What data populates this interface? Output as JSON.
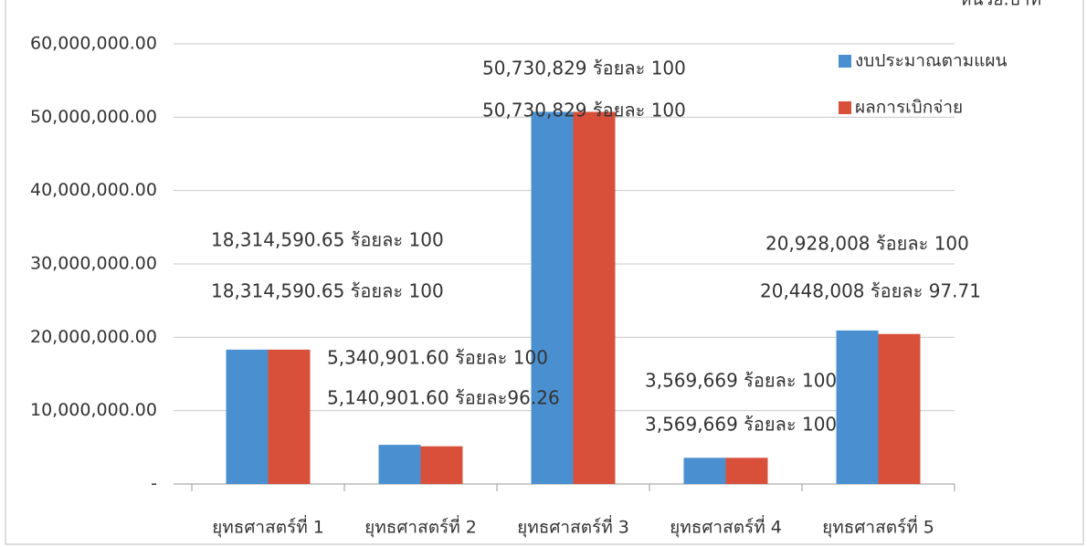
{
  "chart_data": {
    "type": "bar",
    "unit": "หน่วย:บาท",
    "categories": [
      "ยุทธศาสตร์ที่ 1",
      "ยุทธศาสตร์ที่ 2",
      "ยุทธศาสตร์ที่ 3",
      "ยุทธศาสตร์ที่ 4",
      "ยุทธศาสตร์ที่ 5"
    ],
    "series": [
      {
        "name": "งบประมาณตามแผน",
        "color": "#4a90d0",
        "values": [
          18314590.65,
          5340901.6,
          50730829,
          3569669,
          20928008
        ],
        "value_labels": [
          "18,314,590.65 ร้อยละ 100",
          "5,340,901.60 ร้อยละ 100",
          "50,730,829 ร้อยละ 100",
          "3,569,669 ร้อยละ 100",
          "20,928,008 ร้อยละ 100"
        ]
      },
      {
        "name": "ผลการเบิกจ่าย",
        "color": "#d9503a",
        "values": [
          18314590.65,
          5140901.6,
          50730829,
          3569669,
          20448008
        ],
        "value_labels": [
          "18,314,590.65 ร้อยละ 100",
          "5,140,901.60 ร้อยละ96.26",
          "50,730,829 ร้อยละ 100",
          "3,569,669 ร้อยละ 100",
          "20,448,008 ร้อยละ 97.71"
        ]
      }
    ],
    "ylim": [
      0,
      60000000
    ],
    "yticks": [
      {
        "value": 0,
        "label": "-"
      },
      {
        "value": 10000000,
        "label": "10,000,000.00"
      },
      {
        "value": 20000000,
        "label": "20,000,000.00"
      },
      {
        "value": 30000000,
        "label": "30,000,000.00"
      },
      {
        "value": 40000000,
        "label": "40,000,000.00"
      },
      {
        "value": 50000000,
        "label": "50,000,000.00"
      },
      {
        "value": 60000000,
        "label": "60,000,000.00"
      }
    ],
    "grid": true
  }
}
